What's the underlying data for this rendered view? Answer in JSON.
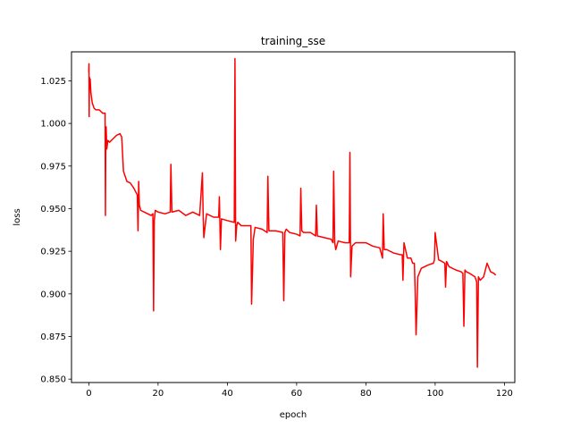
{
  "chart_data": {
    "type": "line",
    "title": "training_sse",
    "xlabel": "epoch",
    "ylabel": "loss",
    "xlim": [
      -5,
      123
    ],
    "ylim": [
      0.848,
      1.042
    ],
    "xticks": [
      0,
      20,
      40,
      60,
      80,
      100,
      120
    ],
    "yticks": [
      0.85,
      0.875,
      0.9,
      0.925,
      0.95,
      0.975,
      1.0,
      1.025
    ],
    "xtick_labels": [
      "0",
      "20",
      "40",
      "60",
      "80",
      "100",
      "120"
    ],
    "ytick_labels": [
      "0.850",
      "0.875",
      "0.900",
      "0.925",
      "0.950",
      "0.975",
      "1.000",
      "1.025"
    ],
    "grid": false,
    "series": [
      {
        "color": "#ff0000",
        "x": [
          0,
          0.05,
          0.1,
          0.15,
          0.2,
          0.3,
          0.4,
          0.6,
          1.0,
          1.5,
          2.0,
          3.0,
          4.0,
          4.7,
          4.8,
          4.9,
          5.0,
          5.2,
          5.5,
          6.0,
          7.0,
          8.0,
          9.0,
          9.5,
          10.0,
          11.0,
          12.0,
          13.0,
          14.0,
          14.2,
          14.4,
          14.6,
          15.0,
          16.0,
          17.0,
          18.0,
          18.5,
          18.7,
          18.9,
          19.2,
          20.0,
          22.0,
          23.5,
          23.7,
          24.0,
          26.0,
          28.0,
          30.0,
          32.0,
          32.8,
          33.0,
          33.2,
          34.0,
          36.0,
          37.5,
          37.7,
          38.0,
          38.3,
          40.0,
          42.0,
          42.2,
          42.4,
          42.7,
          43.0,
          44.0,
          46.0,
          46.8,
          47.0,
          47.5,
          48.0,
          50.0,
          51.5,
          51.7,
          52.0,
          54.0,
          56.0,
          56.3,
          56.6,
          57.0,
          58.0,
          60.0,
          61.0,
          61.2,
          61.5,
          62.0,
          64.0,
          65.5,
          65.7,
          66.0,
          68.0,
          70.0,
          70.5,
          70.7,
          71.0,
          71.3,
          72.0,
          74.0,
          75.2,
          75.4,
          75.6,
          76.0,
          77.0,
          78.0,
          80.0,
          82.0,
          84.0,
          84.8,
          85.0,
          85.3,
          86.0,
          88.0,
          90.0,
          90.5,
          90.7,
          91.0,
          92.0,
          93.0,
          93.5,
          94.0,
          94.2,
          94.5,
          95.0,
          96.0,
          98.0,
          99.5,
          99.8,
          100.0,
          101.0,
          102.0,
          102.8,
          103.0,
          103.3,
          104.0,
          106.0,
          107.5,
          108.0,
          108.3,
          108.6,
          109.0,
          110.0,
          111.5,
          112.0,
          112.2,
          112.5,
          113.0,
          114.0,
          115.0,
          116.0,
          117.0,
          117.5
        ],
        "y": [
          1.03,
          1.035,
          1.004,
          1.02,
          1.027,
          1.022,
          1.026,
          1.018,
          1.012,
          1.009,
          1.008,
          1.008,
          1.006,
          1.006,
          0.946,
          0.988,
          0.998,
          0.985,
          0.99,
          0.989,
          0.991,
          0.993,
          0.994,
          0.992,
          0.972,
          0.966,
          0.965,
          0.962,
          0.958,
          0.937,
          0.966,
          0.952,
          0.949,
          0.948,
          0.947,
          0.946,
          0.947,
          0.89,
          0.943,
          0.949,
          0.948,
          0.947,
          0.948,
          0.976,
          0.948,
          0.949,
          0.946,
          0.948,
          0.946,
          0.971,
          0.948,
          0.933,
          0.947,
          0.945,
          0.945,
          0.957,
          0.926,
          0.944,
          0.943,
          0.942,
          1.038,
          0.931,
          0.94,
          0.942,
          0.94,
          0.94,
          0.94,
          0.894,
          0.932,
          0.939,
          0.938,
          0.936,
          0.969,
          0.937,
          0.937,
          0.936,
          0.896,
          0.936,
          0.938,
          0.936,
          0.935,
          0.934,
          0.962,
          0.937,
          0.936,
          0.936,
          0.934,
          0.952,
          0.934,
          0.933,
          0.932,
          0.93,
          0.972,
          0.93,
          0.926,
          0.931,
          0.93,
          0.93,
          0.983,
          0.91,
          0.928,
          0.93,
          0.93,
          0.93,
          0.928,
          0.927,
          0.921,
          0.947,
          0.926,
          0.926,
          0.924,
          0.923,
          0.923,
          0.908,
          0.93,
          0.921,
          0.921,
          0.918,
          0.918,
          0.904,
          0.876,
          0.91,
          0.915,
          0.917,
          0.918,
          0.92,
          0.936,
          0.92,
          0.919,
          0.918,
          0.904,
          0.919,
          0.916,
          0.914,
          0.913,
          0.912,
          0.881,
          0.914,
          0.913,
          0.912,
          0.91,
          0.907,
          0.857,
          0.91,
          0.908,
          0.91,
          0.918,
          0.913,
          0.912,
          0.911
        ]
      }
    ]
  }
}
